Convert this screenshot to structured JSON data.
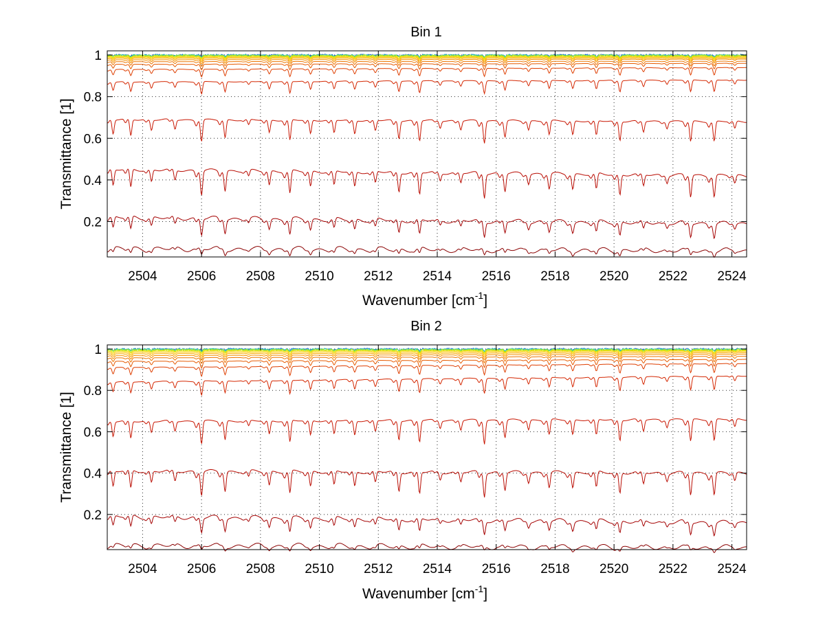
{
  "chart_data": [
    {
      "type": "line",
      "title": "Bin 1",
      "xlabel": "Wavenumber [cm",
      "xlabel_sup": "-1",
      "xlabel_tail": "]",
      "ylabel": "Transmittance [1]",
      "xlim": [
        2502.8,
        2524.5
      ],
      "ylim": [
        0.03,
        1.02
      ],
      "xticks": [
        2504,
        2506,
        2508,
        2510,
        2512,
        2514,
        2516,
        2518,
        2520,
        2522,
        2524
      ],
      "xticklabels": [
        "2504",
        "2506",
        "2508",
        "2510",
        "2512",
        "2514",
        "2516",
        "2518",
        "2520",
        "2522",
        "2524"
      ],
      "yticks": [
        0.2,
        0.4,
        0.6,
        0.8,
        1.0
      ],
      "yticklabels": [
        "0.2",
        "0.4",
        "0.6",
        "0.8",
        "1"
      ],
      "grid": true,
      "series_count": 16,
      "series_baselines": [
        0.07,
        0.22,
        0.45,
        0.69,
        0.87,
        0.93,
        0.955,
        0.968,
        0.977,
        0.984,
        0.989,
        0.993,
        0.996,
        0.998,
        0.999,
        1.0
      ],
      "series_end_values": [
        0.06,
        0.19,
        0.42,
        0.68,
        0.88,
        0.94,
        0.96,
        0.97,
        0.98,
        0.985,
        0.99,
        0.993,
        0.996,
        0.998,
        0.999,
        1.0
      ],
      "series_colors": [
        "#8a0000",
        "#a40000",
        "#b80a00",
        "#c81500",
        "#d42600",
        "#de3e00",
        "#e65a00",
        "#ee7600",
        "#f49000",
        "#f9aa00",
        "#fdc400",
        "#f2dc00",
        "#c8ea10",
        "#80e050",
        "#30c8a8",
        "#1060d8"
      ]
    },
    {
      "type": "line",
      "title": "Bin 2",
      "xlabel": "Wavenumber [cm",
      "xlabel_sup": "-1",
      "xlabel_tail": "]",
      "ylabel": "Transmittance [1]",
      "xlim": [
        2502.8,
        2524.5
      ],
      "ylim": [
        0.03,
        1.02
      ],
      "xticks": [
        2504,
        2506,
        2508,
        2510,
        2512,
        2514,
        2516,
        2518,
        2520,
        2522,
        2524
      ],
      "xticklabels": [
        "2504",
        "2506",
        "2508",
        "2510",
        "2512",
        "2514",
        "2516",
        "2518",
        "2520",
        "2522",
        "2524"
      ],
      "yticks": [
        0.2,
        0.4,
        0.6,
        0.8,
        1.0
      ],
      "yticklabels": [
        "0.2",
        "0.4",
        "0.6",
        "0.8",
        "1"
      ],
      "grid": true,
      "series_count": 16,
      "series_baselines": [
        0.05,
        0.19,
        0.41,
        0.65,
        0.84,
        0.91,
        0.94,
        0.957,
        0.968,
        0.977,
        0.984,
        0.99,
        0.994,
        0.997,
        0.999,
        1.0
      ],
      "series_end_values": [
        0.04,
        0.16,
        0.4,
        0.66,
        0.87,
        0.93,
        0.95,
        0.965,
        0.975,
        0.982,
        0.988,
        0.992,
        0.995,
        0.997,
        0.999,
        1.0
      ],
      "series_colors": [
        "#8a0000",
        "#a40000",
        "#b80a00",
        "#c81500",
        "#d42600",
        "#de3e00",
        "#e65a00",
        "#ee7600",
        "#f49000",
        "#f9aa00",
        "#fdc400",
        "#f2dc00",
        "#c8ea10",
        "#80e050",
        "#30c8a8",
        "#1060d8"
      ]
    }
  ],
  "absorption_lines": [
    2503.0,
    2503.6,
    2504.3,
    2505.1,
    2506.0,
    2506.8,
    2507.6,
    2508.3,
    2509.0,
    2509.7,
    2510.5,
    2511.2,
    2511.9,
    2512.7,
    2513.4,
    2514.1,
    2514.8,
    2515.6,
    2516.3,
    2517.1,
    2517.8,
    2518.6,
    2519.4,
    2520.2,
    2521.0,
    2521.8,
    2522.6,
    2523.4,
    2524.1
  ]
}
